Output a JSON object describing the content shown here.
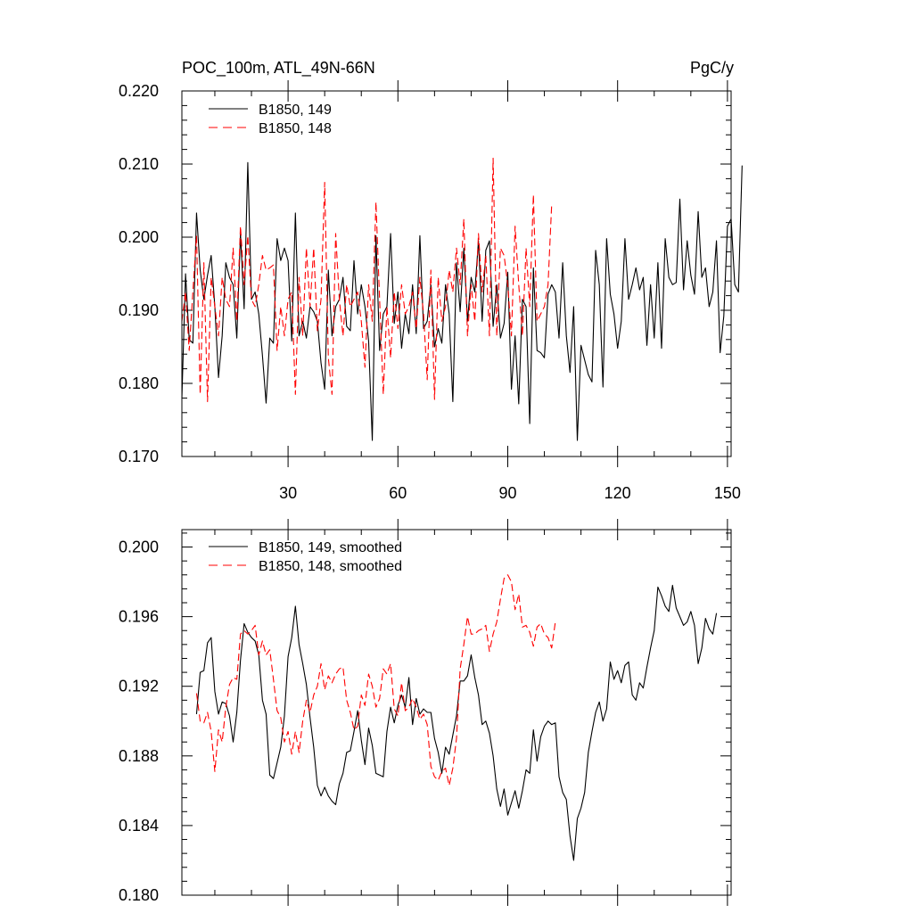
{
  "chart_data": [
    {
      "type": "line",
      "title": "POC_100m, ATL_49N-66N",
      "units": "PgC/y",
      "xlim": [
        1,
        151
      ],
      "ylim": [
        0.17,
        0.22
      ],
      "x_ticks": [
        30,
        60,
        90,
        120,
        150
      ],
      "x_tick_labels": [
        "30",
        "60",
        "90",
        "120",
        "150"
      ],
      "y_ticks": [
        0.17,
        0.18,
        0.19,
        0.2,
        0.21,
        0.22
      ],
      "y_tick_labels": [
        "0.170",
        "0.180",
        "0.190",
        "0.200",
        "0.210",
        "0.220"
      ],
      "legend_position": "top-left",
      "series": [
        {
          "name": "B1850, 149",
          "color": "#000000",
          "style": "solid",
          "x_start": 1,
          "values": [
            0.178,
            0.195,
            0.186,
            0.1855,
            0.2033,
            0.1955,
            0.1915,
            0.1948,
            0.1975,
            0.1905,
            0.1808,
            0.1865,
            0.1965,
            0.1945,
            0.1935,
            0.1862,
            0.2005,
            0.1902,
            0.2102,
            0.1915,
            0.1925,
            0.1895,
            0.1838,
            0.1773,
            0.1862,
            0.1855,
            0.1998,
            0.1968,
            0.1985,
            0.1968,
            0.1858,
            0.2033,
            0.1865,
            0.1885,
            0.1862,
            0.1905,
            0.1898,
            0.1885,
            0.1828,
            0.1792,
            0.1955,
            0.1865,
            0.1905,
            0.1915,
            0.1945,
            0.1878,
            0.1872,
            0.1968,
            0.1895,
            0.1935,
            0.1905,
            0.1858,
            0.1722,
            0.2002,
            0.1845,
            0.1895,
            0.1905,
            0.2005,
            0.1882,
            0.1925,
            0.1848,
            0.1895,
            0.1868,
            0.1935,
            0.1868,
            0.2002,
            0.1875,
            0.1885,
            0.1935,
            0.185,
            0.1875,
            0.1855,
            0.1935,
            0.1895,
            0.1775,
            0.1965,
            0.1898,
            0.1985,
            0.1885,
            0.1945,
            0.1925,
            0.1995,
            0.1885,
            0.1982,
            0.1995,
            0.1878,
            0.1935,
            0.1862,
            0.1882,
            0.1952,
            0.1792,
            0.1865,
            0.1772,
            0.1915,
            0.1905,
            0.1745,
            0.1958,
            0.1845,
            0.1842,
            0.1835,
            0.1922,
            0.1935,
            0.1925,
            0.1862,
            0.1965,
            0.1865,
            0.1815,
            0.1905,
            0.1722,
            0.1852,
            0.1832,
            0.1812,
            0.1802,
            0.1982,
            0.1935,
            0.1795,
            0.1998,
            0.1922,
            0.1895,
            0.1848,
            0.1885,
            0.1998,
            0.1915,
            0.1935,
            0.1958,
            0.1928,
            0.1945,
            0.1852,
            0.1935,
            0.1862,
            0.1965,
            0.1848,
            0.1998,
            0.1945,
            0.1935,
            0.1938,
            0.2052,
            0.1928,
            0.1995,
            0.1948,
            0.1922,
            0.2035,
            0.1945,
            0.1958,
            0.1905,
            0.1925,
            0.1995,
            0.1842,
            0.1892,
            0.2015,
            0.2025,
            0.1935,
            0.1925,
            0.2098
          ]
        },
        {
          "name": "B1850, 148",
          "color": "#ff0000",
          "style": "dashed",
          "x_start": 1,
          "values": [
            0.1885,
            0.1925,
            0.1845,
            0.1925,
            0.2002,
            0.1785,
            0.1965,
            0.1775,
            0.1945,
            0.1905,
            0.1865,
            0.1945,
            0.1915,
            0.1905,
            0.1985,
            0.1885,
            0.2015,
            0.1935,
            0.2002,
            0.1915,
            0.1905,
            0.1935,
            0.1975,
            0.1955,
            0.1958,
            0.1962,
            0.1845,
            0.1905,
            0.1865,
            0.1915,
            0.1925,
            0.1785,
            0.1945,
            0.1865,
            0.1985,
            0.1905,
            0.1985,
            0.1872,
            0.1915,
            0.2075,
            0.1835,
            0.1785,
            0.2005,
            0.1915,
            0.1865,
            0.1935,
            0.1905,
            0.1915,
            0.1925,
            0.1885,
            0.1822,
            0.1935,
            0.1885,
            0.2048,
            0.1915,
            0.1785,
            0.1905,
            0.1835,
            0.1925,
            0.1875,
            0.1935,
            0.1895,
            0.1905,
            0.1925,
            0.1875,
            0.1945,
            0.1895,
            0.1805,
            0.1955,
            0.1778,
            0.1945,
            0.1885,
            0.1905,
            0.1955,
            0.1925,
            0.1985,
            0.1935,
            0.2025,
            0.1865,
            0.1935,
            0.1885,
            0.2005,
            0.1925,
            0.1975,
            0.1865,
            0.2108,
            0.1865,
            0.1985,
            0.1975,
            0.1935,
            0.1865,
            0.2015,
            0.1935,
            0.1865,
            0.1985,
            0.1905,
            0.2058,
            0.1885,
            0.1895,
            0.1905,
            0.1935,
            0.2045
          ]
        }
      ]
    },
    {
      "type": "line",
      "title": "",
      "xlim": [
        1,
        151
      ],
      "ylim": [
        0.18,
        0.201
      ],
      "x_ticks": [
        30,
        60,
        90,
        120,
        150
      ],
      "x_tick_labels": [],
      "y_ticks": [
        0.18,
        0.184,
        0.188,
        0.192,
        0.196,
        0.2
      ],
      "y_tick_labels": [
        "0.180",
        "0.184",
        "0.188",
        "0.192",
        "0.196",
        "0.200"
      ],
      "legend_position": "top-left",
      "series": [
        {
          "name": "B1850, 149, smoothed",
          "color": "#000000",
          "style": "solid",
          "x_start": 5,
          "values": [
            0.1904,
            0.1928,
            0.1929,
            0.1945,
            0.1948,
            0.1917,
            0.1904,
            0.1911,
            0.191,
            0.1903,
            0.1888,
            0.1905,
            0.1935,
            0.1956,
            0.1951,
            0.1948,
            0.1946,
            0.1938,
            0.1912,
            0.1904,
            0.1869,
            0.1867,
            0.1876,
            0.1885,
            0.1903,
            0.1937,
            0.1948,
            0.1966,
            0.1944,
            0.1933,
            0.1921,
            0.1902,
            0.1885,
            0.1863,
            0.1857,
            0.1862,
            0.1857,
            0.1854,
            0.1852,
            0.1864,
            0.187,
            0.1882,
            0.1883,
            0.1894,
            0.1906,
            0.1889,
            0.1875,
            0.1896,
            0.1886,
            0.187,
            0.1869,
            0.1868,
            0.1894,
            0.1908,
            0.1899,
            0.1909,
            0.1915,
            0.1908,
            0.1925,
            0.1898,
            0.1913,
            0.1904,
            0.1907,
            0.1905,
            0.1905,
            0.189,
            0.1882,
            0.187,
            0.1885,
            0.1881,
            0.1892,
            0.1903,
            0.1923,
            0.1923,
            0.1926,
            0.1938,
            0.1925,
            0.1915,
            0.1898,
            0.19,
            0.1893,
            0.188,
            0.1861,
            0.1851,
            0.1861,
            0.1846,
            0.1853,
            0.186,
            0.185,
            0.186,
            0.1872,
            0.187,
            0.1895,
            0.1877,
            0.1891,
            0.1897,
            0.19,
            0.1898,
            0.1899,
            0.1868,
            0.1859,
            0.1855,
            0.1834,
            0.182,
            0.1844,
            0.185,
            0.1859,
            0.1882,
            0.1894,
            0.1905,
            0.1911,
            0.19,
            0.1907,
            0.1934,
            0.1924,
            0.1929,
            0.1922,
            0.1932,
            0.1934,
            0.1915,
            0.1912,
            0.1922,
            0.1919,
            0.1931,
            0.1942,
            0.1952,
            0.1977,
            0.1972,
            0.1966,
            0.1963,
            0.1978,
            0.1965,
            0.196,
            0.1955,
            0.1957,
            0.1963,
            0.1955,
            0.1933,
            0.1942,
            0.1959,
            0.1953,
            0.195,
            0.1962
          ]
        },
        {
          "name": "B1850, 148, smoothed",
          "color": "#ff0000",
          "style": "dashed",
          "x_start": 5,
          "values": [
            0.1916,
            0.19,
            0.1899,
            0.1905,
            0.1894,
            0.1871,
            0.1895,
            0.1888,
            0.1908,
            0.1921,
            0.1925,
            0.1924,
            0.195,
            0.1952,
            0.195,
            0.1952,
            0.1955,
            0.1938,
            0.1946,
            0.1938,
            0.1941,
            0.1924,
            0.1906,
            0.1902,
            0.1888,
            0.1894,
            0.1881,
            0.1894,
            0.1882,
            0.19,
            0.1912,
            0.1905,
            0.1915,
            0.192,
            0.1933,
            0.1918,
            0.1926,
            0.1922,
            0.1927,
            0.193,
            0.1931,
            0.1912,
            0.1905,
            0.1895,
            0.1897,
            0.1915,
            0.1909,
            0.1927,
            0.192,
            0.1908,
            0.1913,
            0.193,
            0.1927,
            0.1933,
            0.1907,
            0.1903,
            0.1922,
            0.1906,
            0.1908,
            0.1913,
            0.1908,
            0.1901,
            0.1904,
            0.1898,
            0.1874,
            0.1868,
            0.1866,
            0.1871,
            0.1873,
            0.1863,
            0.1873,
            0.189,
            0.193,
            0.1944,
            0.196,
            0.195,
            0.195,
            0.1952,
            0.1953,
            0.1955,
            0.194,
            0.195,
            0.1957,
            0.197,
            0.1982,
            0.1984,
            0.198,
            0.1964,
            0.1973,
            0.1954,
            0.1955,
            0.1951,
            0.1943,
            0.1954,
            0.1956,
            0.195,
            0.1948,
            0.1942,
            0.1957
          ]
        }
      ]
    }
  ]
}
